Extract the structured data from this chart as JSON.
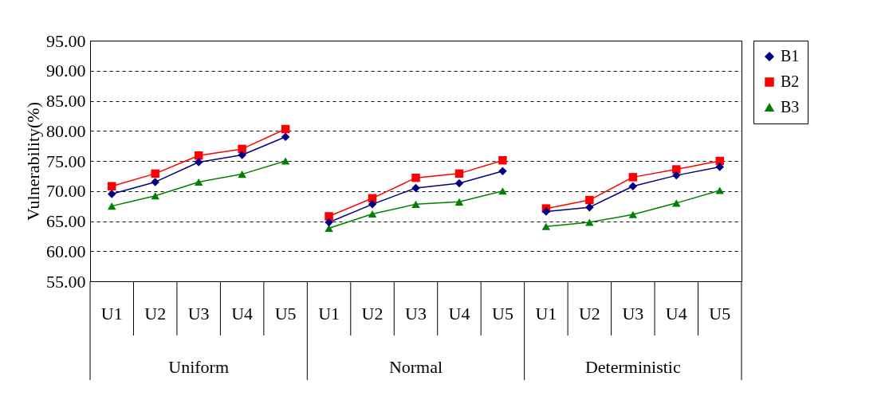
{
  "chart_data": {
    "type": "line",
    "ylabel": "Vulnerability(%)",
    "categories": [
      "U1",
      "U2",
      "U3",
      "U4",
      "U5",
      "U1",
      "U2",
      "U3",
      "U4",
      "U5",
      "U1",
      "U2",
      "U3",
      "U4",
      "U5"
    ],
    "annotations": [
      "Uniform",
      "Normal",
      "Deterministic"
    ],
    "series": [
      {
        "name": "B1",
        "color": "#000080",
        "marker": "diamond",
        "values": [
          69.5,
          71.5,
          74.8,
          76.0,
          79.0,
          64.8,
          67.8,
          70.5,
          71.3,
          73.3,
          66.6,
          67.3,
          70.8,
          72.6,
          74.0
        ]
      },
      {
        "name": "B2",
        "color": "#ff0000",
        "marker": "square",
        "values": [
          70.8,
          72.9,
          75.9,
          77.0,
          80.3,
          65.8,
          68.8,
          72.2,
          72.9,
          75.1,
          67.1,
          68.5,
          72.3,
          73.6,
          75.0
        ]
      },
      {
        "name": "B3",
        "color": "#008000",
        "marker": "triangle",
        "values": [
          67.5,
          69.2,
          71.5,
          72.8,
          75.0,
          63.8,
          66.2,
          67.8,
          68.2,
          70.0,
          64.1,
          64.8,
          66.1,
          68.0,
          70.1
        ]
      }
    ],
    "ylim": [
      55,
      95
    ],
    "yticks": [
      {
        "value": 55,
        "label": "55.00"
      },
      {
        "value": 60,
        "label": "60.00"
      },
      {
        "value": 65,
        "label": "65.00"
      },
      {
        "value": 70,
        "label": "70.00"
      },
      {
        "value": 75,
        "label": "75.00"
      },
      {
        "value": 80,
        "label": "80.00"
      },
      {
        "value": 85,
        "label": "85.00"
      },
      {
        "value": 90,
        "label": "90.00"
      },
      {
        "value": 95,
        "label": "95.00"
      }
    ],
    "grid": "y",
    "legend": "right"
  }
}
